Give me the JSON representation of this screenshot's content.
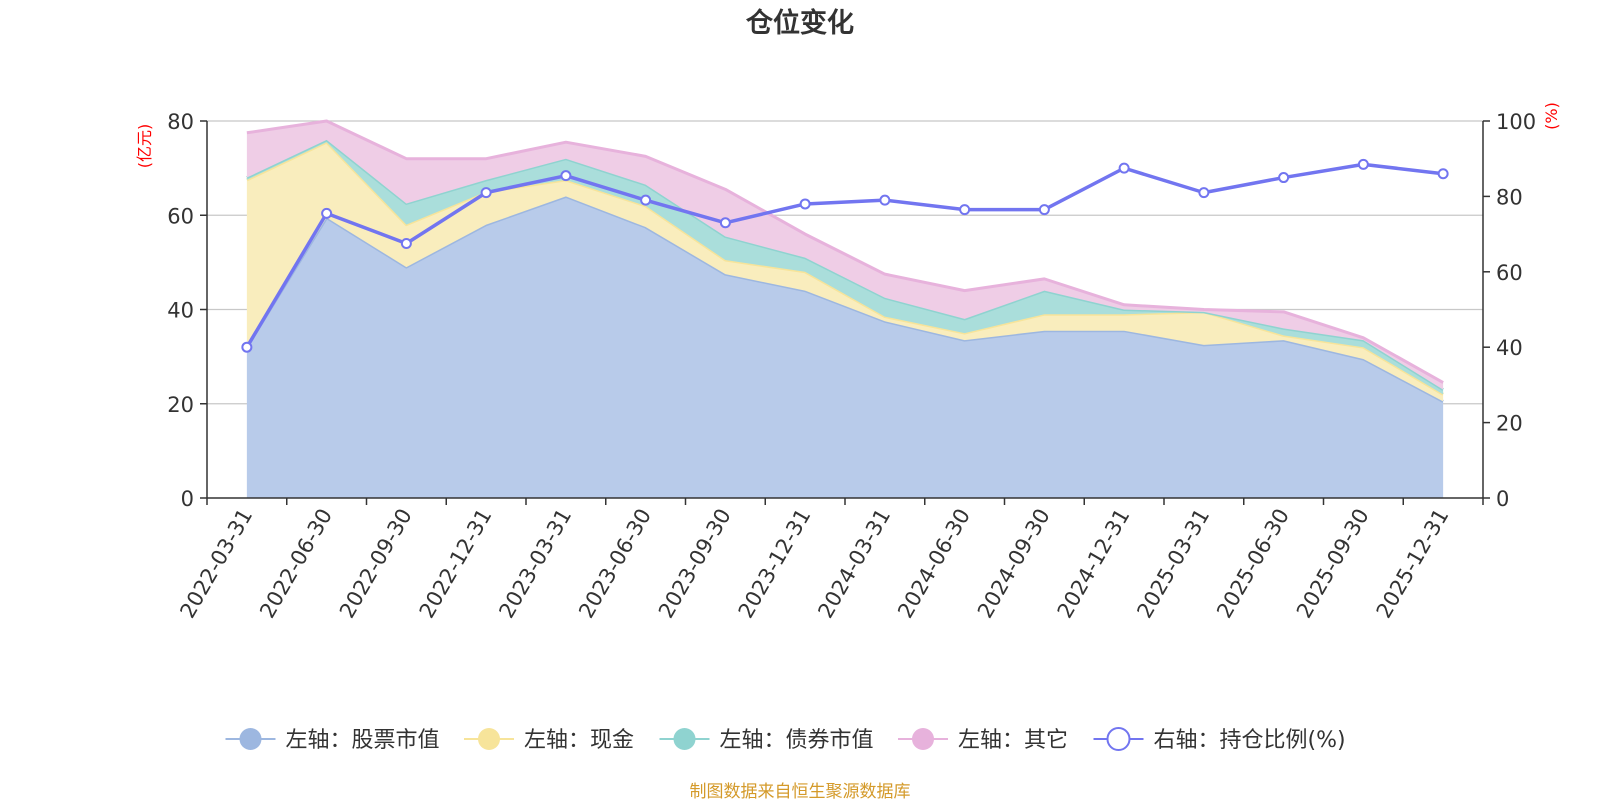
{
  "chart_data": {
    "type": "area",
    "title": "仓位变化",
    "left_axis_unit": "(亿元)",
    "right_axis_unit": "(%)",
    "categories": [
      "2022-03-31",
      "2022-06-30",
      "2022-09-30",
      "2022-12-31",
      "2023-03-31",
      "2023-06-30",
      "2023-09-30",
      "2023-12-31",
      "2024-03-31",
      "2024-06-30",
      "2024-09-30",
      "2024-12-31",
      "2025-03-31",
      "2025-06-30",
      "2025-09-30",
      "2025-12-31"
    ],
    "left_ylim": [
      0,
      80
    ],
    "left_ticks": [
      0,
      20,
      40,
      60,
      80
    ],
    "right_ylim": [
      0,
      100
    ],
    "right_ticks": [
      0,
      20,
      40,
      60,
      80,
      100
    ],
    "stacked_series": [
      {
        "name": "左轴：股票市值",
        "axis": "left",
        "color": "#9db7e0",
        "fill": "#b8cbea",
        "values": [
          32,
          59.5,
          49,
          58,
          64,
          57.5,
          47.5,
          44,
          37.5,
          33.5,
          35.5,
          35.5,
          32.5,
          33.5,
          29.5,
          20.5
        ]
      },
      {
        "name": "左轴：现金",
        "axis": "left",
        "color": "#f7e49a",
        "fill": "#f9edbd",
        "values": [
          35.5,
          16,
          9,
          7,
          3.5,
          4.5,
          3,
          4,
          1,
          1.5,
          3.5,
          3.5,
          7,
          1,
          2.5,
          1.5
        ]
      },
      {
        "name": "左轴：债券市值",
        "axis": "left",
        "color": "#8fd3d0",
        "fill": "#aadedb",
        "values": [
          0.5,
          0.5,
          4.5,
          2.5,
          4.5,
          4.5,
          5,
          3,
          4,
          3,
          5,
          1,
          0,
          1.5,
          1.5,
          1
        ]
      },
      {
        "name": "左轴：其它",
        "axis": "left",
        "color": "#e7b2dc",
        "fill": "#efcde6",
        "values": [
          9.5,
          4,
          9.5,
          4.5,
          3.5,
          6,
          10,
          5,
          5,
          6,
          2.5,
          1,
          0.5,
          3.5,
          0.5,
          1.5
        ]
      }
    ],
    "line_series": {
      "name": "右轴：持仓比例(%)",
      "axis": "right",
      "color": "#7275f0",
      "values": [
        40,
        75.5,
        67.5,
        81,
        85.5,
        79,
        73,
        78,
        79,
        76.5,
        76.5,
        87.5,
        81,
        85,
        88.5,
        86
      ]
    },
    "legend_position": "bottom",
    "grid": true,
    "source_note": "制图数据来自恒生聚源数据库"
  }
}
